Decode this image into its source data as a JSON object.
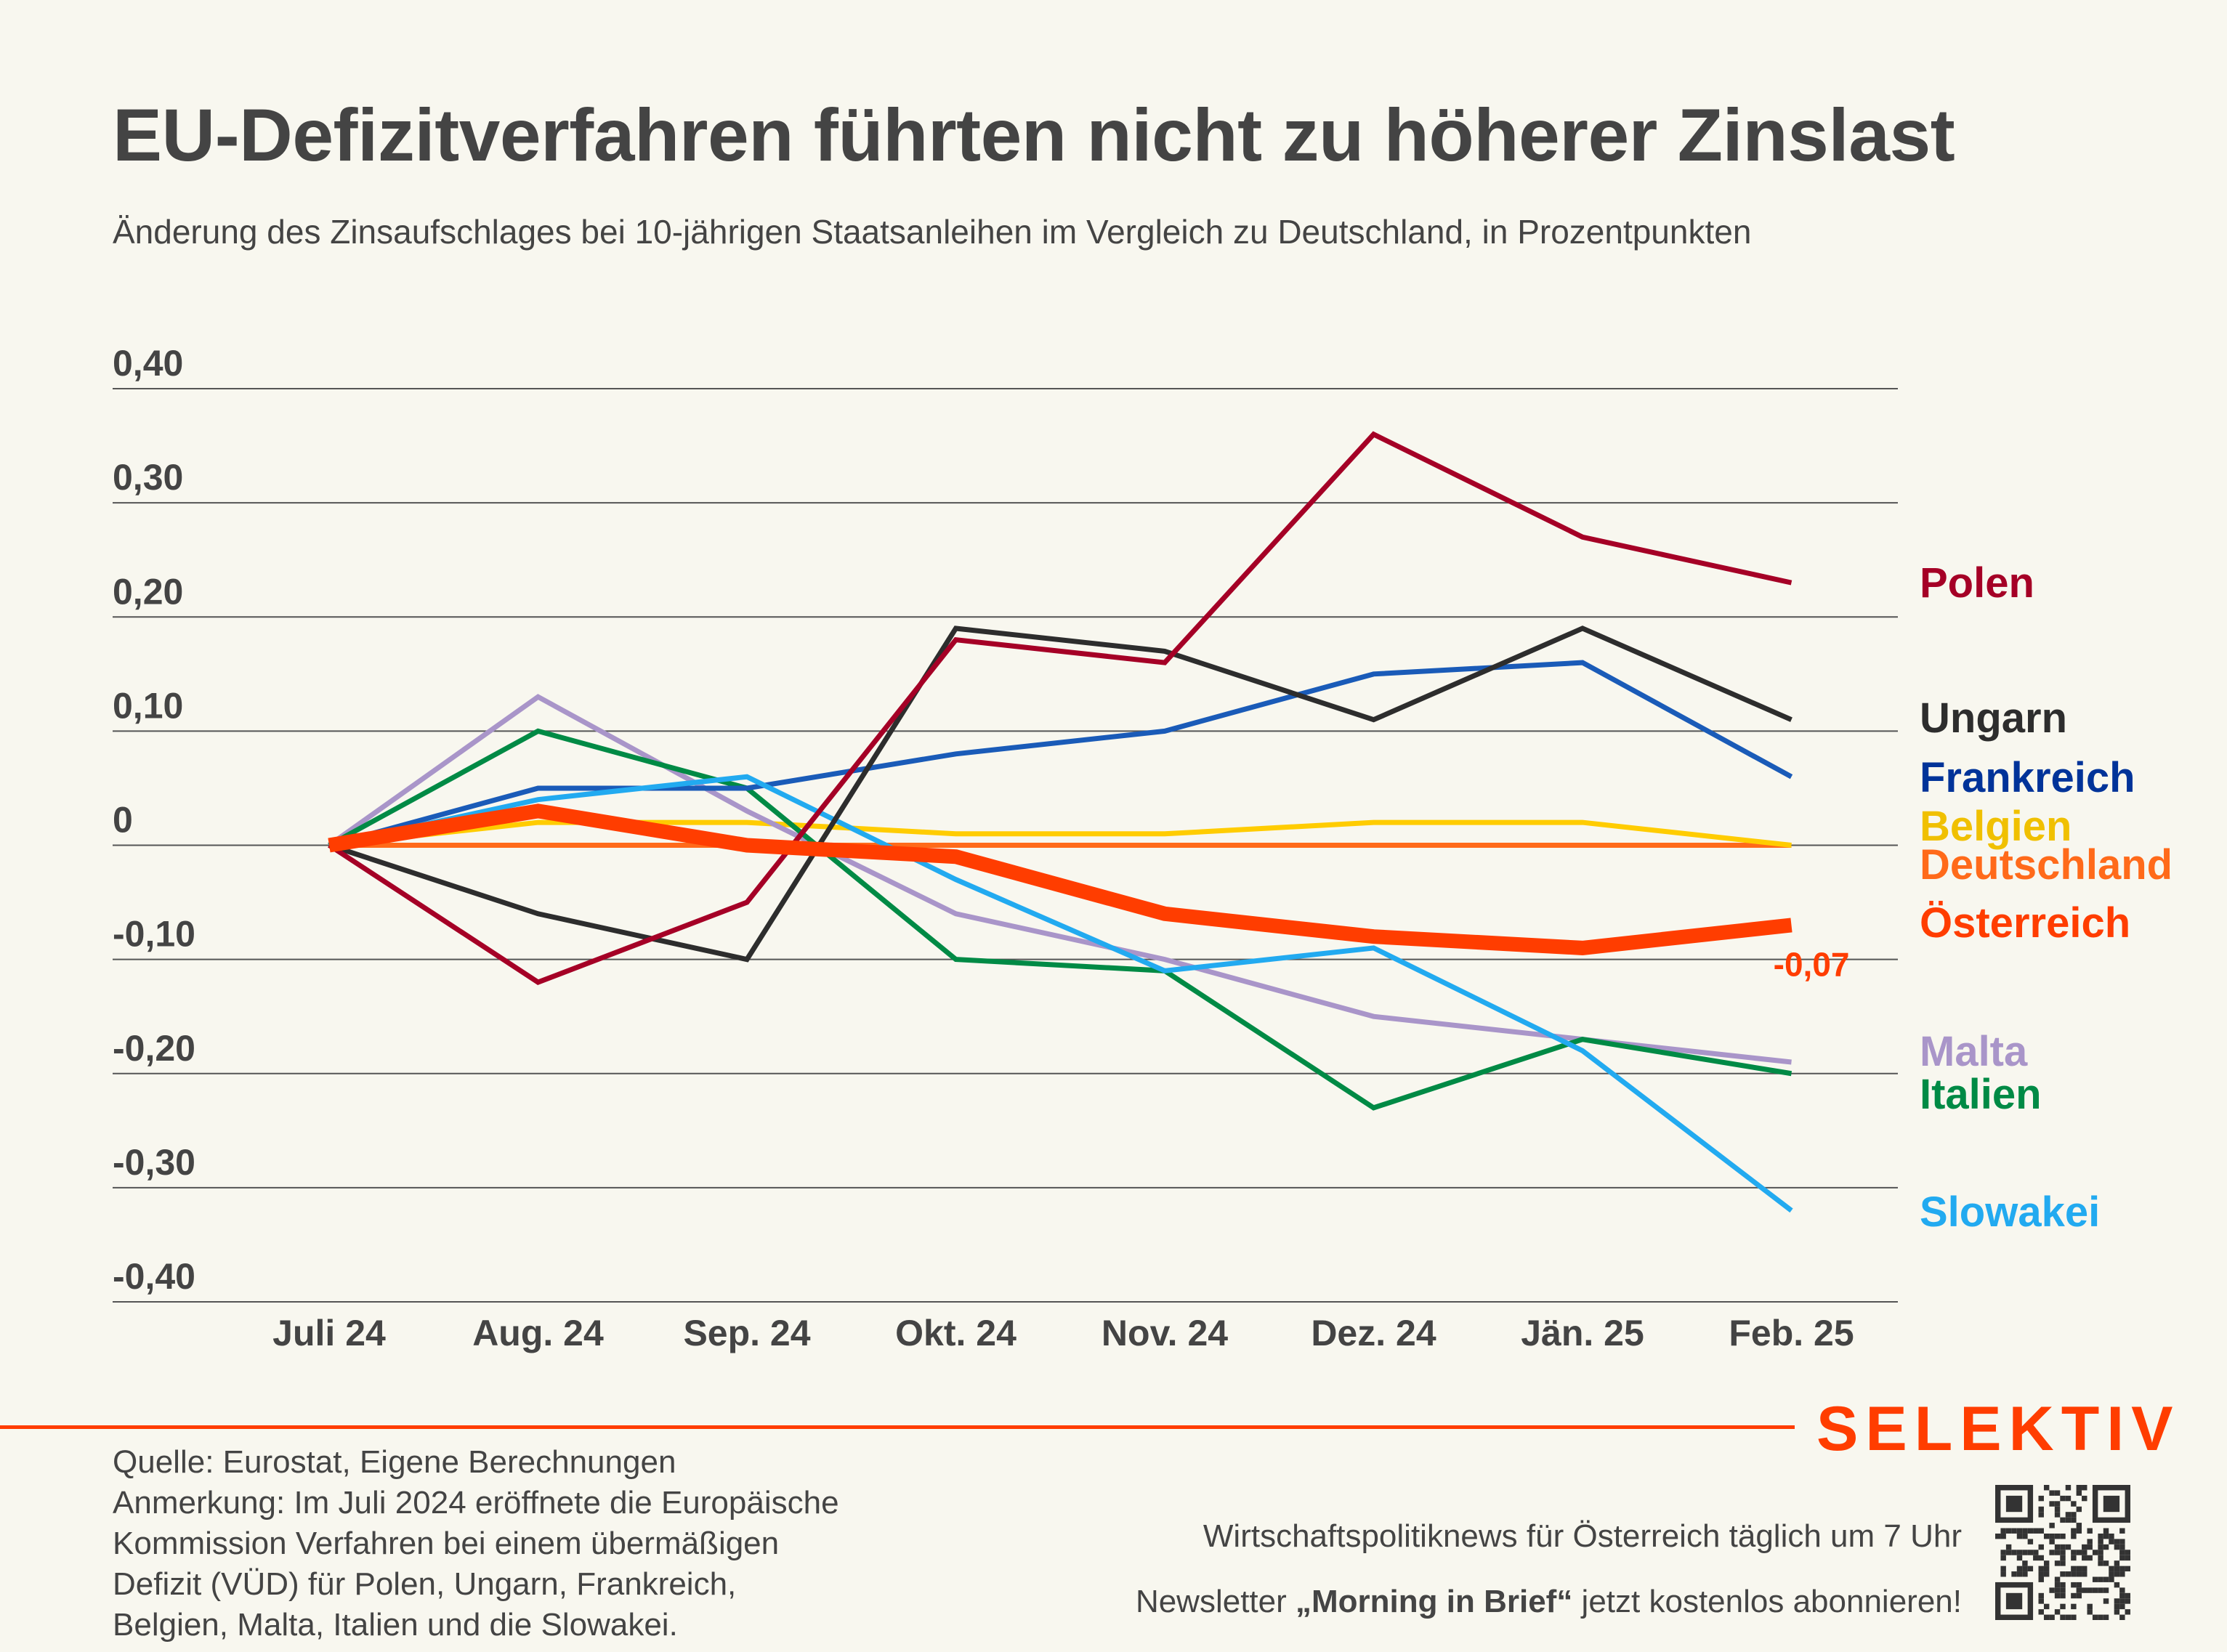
{
  "header": {
    "title": "EU-Defizitverfahren führten nicht zu höherer Zinslast",
    "subtitle": "Änderung des Zinsaufschlages bei 10-jährigen Staatsanleihen im Vergleich zu Deutschland, in Prozentpunkten"
  },
  "chart_data": {
    "type": "line",
    "title": "EU-Defizitverfahren führten nicht zu höherer Zinslast",
    "subtitle": "Änderung des Zinsaufschlages bei 10-jährigen Staatsanleihen im Vergleich zu Deutschland, in Prozentpunkten",
    "xlabel": "",
    "ylabel": "",
    "categories": [
      "Juli 24",
      "Aug. 24",
      "Sep. 24",
      "Okt. 24",
      "Nov. 24",
      "Dez. 24",
      "Jän. 25",
      "Feb. 25"
    ],
    "ylim": [
      -0.4,
      0.4
    ],
    "yticks": [
      0.4,
      0.3,
      0.2,
      0.1,
      0,
      -0.1,
      -0.2,
      -0.3,
      -0.4
    ],
    "ytick_labels": [
      "0,40",
      "0,30",
      "0,20",
      "0,10",
      "0",
      "-0,10",
      "-0,20",
      "-0,30",
      "-0,40"
    ],
    "grid": true,
    "legend": "direct labels right",
    "series": [
      {
        "name": "Polen",
        "color": "#a50026",
        "label_color": "#a50026",
        "values": [
          0,
          -0.12,
          -0.05,
          0.18,
          0.16,
          0.36,
          0.27,
          0.23
        ]
      },
      {
        "name": "Ungarn",
        "color": "#2d2d2d",
        "label_color": "#2d2d2d",
        "values": [
          0,
          -0.06,
          -0.1,
          0.19,
          0.17,
          0.11,
          0.19,
          0.11
        ]
      },
      {
        "name": "Frankreich",
        "color": "#1a5bb8",
        "label_color": "#003399",
        "values": [
          0,
          0.05,
          0.05,
          0.08,
          0.1,
          0.15,
          0.16,
          0.06
        ]
      },
      {
        "name": "Belgien",
        "color": "#ffcc00",
        "label_color": "#f0c000",
        "values": [
          0,
          0.02,
          0.02,
          0.01,
          0.01,
          0.02,
          0.02,
          0.0
        ]
      },
      {
        "name": "Deutschland",
        "color": "#ff6a1a",
        "label_color": "#ff6a1a",
        "values": [
          0,
          0,
          0,
          0,
          0,
          0,
          0,
          0
        ]
      },
      {
        "name": "Malta",
        "color": "#a995c9",
        "label_color": "#a995c9",
        "values": [
          0,
          0.13,
          0.03,
          -0.06,
          -0.1,
          -0.15,
          -0.17,
          -0.19
        ]
      },
      {
        "name": "Italien",
        "color": "#008a45",
        "label_color": "#008a45",
        "values": [
          0,
          0.1,
          0.05,
          -0.1,
          -0.11,
          -0.23,
          -0.17,
          -0.2
        ]
      },
      {
        "name": "Slowakei",
        "color": "#22aaf0",
        "label_color": "#22aaf0",
        "values": [
          0,
          0.04,
          0.06,
          -0.03,
          -0.11,
          -0.09,
          -0.18,
          -0.32
        ]
      },
      {
        "name": "Österreich",
        "color": "#ff3d00",
        "label_color": "#ff3d00",
        "emphasis": true,
        "values": [
          0,
          0.03,
          0.0,
          -0.01,
          -0.06,
          -0.08,
          -0.09,
          -0.07
        ]
      }
    ],
    "annotations": [
      {
        "series": "Österreich",
        "category": "Feb. 25",
        "text": "-0,07"
      }
    ]
  },
  "footer": {
    "source": "Quelle: Eurostat, Eigene Berechnungen",
    "note_lines": [
      "Anmerkung: Im Juli 2024 eröffnete die Europäische",
      "Kommission Verfahren bei einem übermäßigen",
      "Defizit (VÜD) für Polen, Ungarn, Frankreich,",
      "Belgien, Malta, Italien und die Slowakei."
    ],
    "brand": "SELEKTIV",
    "promo_line1": "Wirtschaftspolitiknews für Österreich täglich um 7 Uhr",
    "promo_line2_pre": "Newsletter ",
    "promo_line2_bold": "„Morning in Brief“",
    "promo_line2_post": " jetzt kostenlos abonnieren!",
    "qr_icon": "qr-code-icon"
  }
}
